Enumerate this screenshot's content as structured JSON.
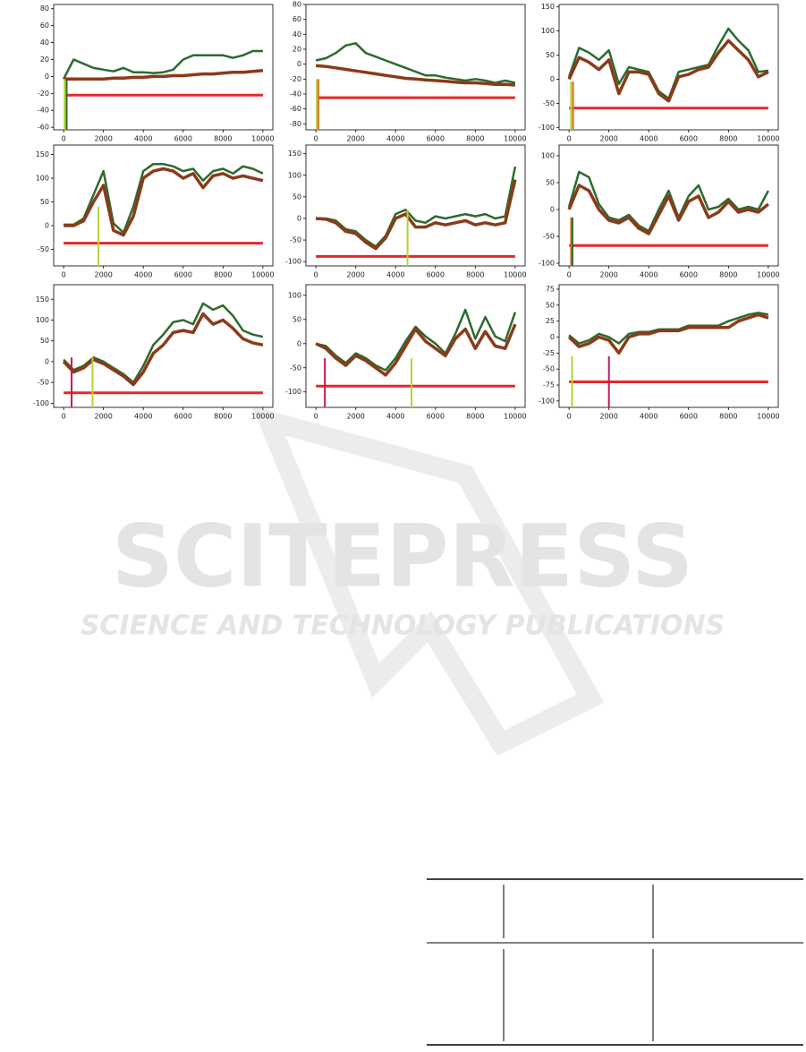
{
  "watermark": {
    "title": "SCITEPRESS",
    "subtitle": "SCIENCE AND TECHNOLOGY PUBLICATIONS"
  },
  "chart_data": [
    {
      "type": "line",
      "x": [
        0,
        500,
        1000,
        1500,
        2000,
        2500,
        3000,
        3500,
        4000,
        4500,
        5000,
        5500,
        6000,
        6500,
        7000,
        7500,
        8000,
        8500,
        9000,
        9500,
        10000
      ],
      "xlim": [
        -500,
        10500
      ],
      "xticks": [
        0,
        2000,
        4000,
        6000,
        8000,
        10000
      ],
      "ylim": [
        -63,
        85
      ],
      "yticks": [
        -60,
        -40,
        -20,
        0,
        20,
        40,
        60,
        80
      ],
      "series": [
        {
          "color": "#2d6a2e",
          "values": [
            -3,
            20,
            15,
            10,
            8,
            6,
            10,
            5,
            5,
            4,
            5,
            8,
            20,
            25,
            25,
            25,
            25,
            22,
            25,
            30,
            30
          ]
        },
        {
          "color": "#8b3a1a",
          "values": [
            -3,
            -3,
            -3,
            -3,
            -3,
            -2,
            -2,
            -1,
            -1,
            0,
            0,
            1,
            1,
            2,
            3,
            3,
            4,
            5,
            5,
            6,
            7
          ]
        }
      ],
      "hline": {
        "y": -22,
        "x0": 100,
        "x1": 10000,
        "color": "#e8262a"
      },
      "vlines": [
        {
          "x": 50,
          "top": -3,
          "color": "#b5d334"
        },
        {
          "x": 150,
          "top": -3,
          "color": "#2d6a2e"
        }
      ]
    },
    {
      "type": "line",
      "x": [
        0,
        500,
        1000,
        1500,
        2000,
        2500,
        3000,
        3500,
        4000,
        4500,
        5000,
        5500,
        6000,
        6500,
        7000,
        7500,
        8000,
        8500,
        9000,
        9500,
        10000
      ],
      "xlim": [
        -500,
        10500
      ],
      "xticks": [
        0,
        2000,
        4000,
        6000,
        8000,
        10000
      ],
      "ylim": [
        -88,
        80
      ],
      "yticks": [
        -80,
        -60,
        -40,
        -20,
        0,
        20,
        40,
        60,
        80
      ],
      "series": [
        {
          "color": "#2d6a2e",
          "values": [
            5,
            8,
            15,
            25,
            28,
            15,
            10,
            5,
            0,
            -5,
            -10,
            -15,
            -15,
            -18,
            -20,
            -22,
            -20,
            -22,
            -25,
            -22,
            -25
          ]
        },
        {
          "color": "#8b3a1a",
          "values": [
            -2,
            -3,
            -5,
            -7,
            -9,
            -11,
            -13,
            -15,
            -17,
            -19,
            -20,
            -21,
            -22,
            -23,
            -24,
            -25,
            -25,
            -26,
            -27,
            -27,
            -28
          ]
        }
      ],
      "hline": {
        "y": -45,
        "x0": 50,
        "x1": 10000,
        "color": "#e8262a"
      },
      "vlines": [
        {
          "x": 50,
          "top": -20,
          "color": "#b5d334"
        },
        {
          "x": 120,
          "top": -20,
          "color": "#e07020"
        }
      ]
    },
    {
      "type": "line",
      "x": [
        0,
        500,
        1000,
        1500,
        2000,
        2500,
        3000,
        3500,
        4000,
        4500,
        5000,
        5500,
        6000,
        6500,
        7000,
        7500,
        8000,
        8500,
        9000,
        9500,
        10000
      ],
      "xlim": [
        -500,
        10500
      ],
      "xticks": [
        0,
        2000,
        4000,
        6000,
        8000,
        10000
      ],
      "ylim": [
        -105,
        155
      ],
      "yticks": [
        -100,
        -50,
        0,
        50,
        100,
        150
      ],
      "series": [
        {
          "color": "#2d6a2e",
          "values": [
            5,
            65,
            55,
            40,
            60,
            -10,
            25,
            20,
            15,
            -25,
            -40,
            15,
            20,
            25,
            30,
            70,
            105,
            80,
            60,
            15,
            18
          ]
        },
        {
          "color": "#8b3a1a",
          "values": [
            0,
            45,
            35,
            20,
            40,
            -30,
            15,
            15,
            10,
            -30,
            -45,
            5,
            10,
            20,
            25,
            55,
            80,
            60,
            40,
            5,
            15
          ]
        }
      ],
      "hline": {
        "y": -60,
        "x0": 0,
        "x1": 10000,
        "color": "#e8262a"
      },
      "vlines": [
        {
          "x": 100,
          "top": -5,
          "color": "#b5d334"
        },
        {
          "x": 200,
          "top": -5,
          "color": "#e07020"
        }
      ]
    },
    {
      "type": "line",
      "x": [
        0,
        500,
        1000,
        1500,
        2000,
        2500,
        3000,
        3500,
        4000,
        4500,
        5000,
        5500,
        6000,
        6500,
        7000,
        7500,
        8000,
        8500,
        9000,
        9500,
        10000
      ],
      "xlim": [
        -500,
        10500
      ],
      "xticks": [
        0,
        2000,
        4000,
        6000,
        8000,
        10000
      ],
      "ylim": [
        -85,
        170
      ],
      "yticks": [
        -50,
        0,
        50,
        100,
        150
      ],
      "series": [
        {
          "color": "#2d6a2e",
          "values": [
            2,
            2,
            15,
            65,
            115,
            5,
            -15,
            40,
            115,
            130,
            130,
            125,
            115,
            120,
            95,
            115,
            120,
            110,
            125,
            120,
            110
          ]
        },
        {
          "color": "#8b3a1a",
          "values": [
            0,
            0,
            10,
            50,
            85,
            -10,
            -20,
            20,
            100,
            115,
            120,
            115,
            100,
            110,
            80,
            105,
            110,
            100,
            105,
            100,
            95
          ]
        }
      ],
      "hline": {
        "y": -37,
        "x0": 0,
        "x1": 10000,
        "color": "#e8262a"
      },
      "vlines": [
        {
          "x": 1750,
          "top": 40,
          "color": "#b5d334"
        }
      ]
    },
    {
      "type": "line",
      "x": [
        0,
        500,
        1000,
        1500,
        2000,
        2500,
        3000,
        3500,
        4000,
        4500,
        5000,
        5500,
        6000,
        6500,
        7000,
        7500,
        8000,
        8500,
        9000,
        9500,
        10000
      ],
      "xlim": [
        -500,
        10500
      ],
      "xticks": [
        0,
        2000,
        4000,
        6000,
        8000,
        10000
      ],
      "ylim": [
        -110,
        170
      ],
      "yticks": [
        -100,
        -50,
        0,
        50,
        100,
        150
      ],
      "series": [
        {
          "color": "#2d6a2e",
          "values": [
            0,
            0,
            -5,
            -25,
            -30,
            -50,
            -65,
            -40,
            10,
            20,
            -5,
            -10,
            5,
            0,
            5,
            10,
            5,
            10,
            0,
            5,
            120
          ]
        },
        {
          "color": "#8b3a1a",
          "values": [
            0,
            -2,
            -10,
            -30,
            -35,
            -55,
            -70,
            -45,
            0,
            10,
            -20,
            -20,
            -10,
            -15,
            -10,
            -5,
            -15,
            -10,
            -15,
            -10,
            90
          ]
        }
      ],
      "hline": {
        "y": -88,
        "x0": 0,
        "x1": 10000,
        "color": "#e8262a"
      },
      "vlines": [
        {
          "x": 4600,
          "top": 20,
          "color": "#b5d334"
        }
      ]
    },
    {
      "type": "line",
      "x": [
        0,
        500,
        1000,
        1500,
        2000,
        2500,
        3000,
        3500,
        4000,
        4500,
        5000,
        5500,
        6000,
        6500,
        7000,
        7500,
        8000,
        8500,
        9000,
        9500,
        10000
      ],
      "xlim": [
        -500,
        10500
      ],
      "xticks": [
        0,
        2000,
        4000,
        6000,
        8000,
        10000
      ],
      "ylim": [
        -105,
        120
      ],
      "yticks": [
        -100,
        -50,
        0,
        50,
        100
      ],
      "series": [
        {
          "color": "#2d6a2e",
          "values": [
            5,
            70,
            60,
            10,
            -15,
            -20,
            -10,
            -30,
            -40,
            0,
            35,
            -15,
            25,
            45,
            0,
            5,
            20,
            0,
            5,
            0,
            35
          ]
        },
        {
          "color": "#8b3a1a",
          "values": [
            0,
            45,
            35,
            0,
            -20,
            -25,
            -15,
            -35,
            -45,
            -10,
            25,
            -20,
            15,
            25,
            -15,
            -5,
            15,
            -5,
            0,
            -5,
            10
          ]
        }
      ],
      "hline": {
        "y": -67,
        "x0": 0,
        "x1": 10000,
        "color": "#e8262a"
      },
      "vlines": [
        {
          "x": 100,
          "top": -15,
          "color": "#e07020"
        },
        {
          "x": 170,
          "top": -15,
          "color": "#2d6a2e"
        }
      ]
    },
    {
      "type": "line",
      "x": [
        0,
        500,
        1000,
        1500,
        2000,
        2500,
        3000,
        3500,
        4000,
        4500,
        5000,
        5500,
        6000,
        6500,
        7000,
        7500,
        8000,
        8500,
        9000,
        9500,
        10000
      ],
      "xlim": [
        -500,
        10500
      ],
      "xticks": [
        0,
        2000,
        4000,
        6000,
        8000,
        10000
      ],
      "ylim": [
        -110,
        185
      ],
      "yticks": [
        -100,
        -50,
        0,
        50,
        100,
        150
      ],
      "series": [
        {
          "color": "#2d6a2e",
          "values": [
            5,
            -20,
            -10,
            10,
            0,
            -15,
            -30,
            -50,
            -10,
            40,
            65,
            95,
            100,
            90,
            140,
            125,
            135,
            110,
            75,
            65,
            60
          ]
        },
        {
          "color": "#8b3a1a",
          "values": [
            0,
            -25,
            -15,
            5,
            -5,
            -20,
            -35,
            -55,
            -25,
            20,
            40,
            70,
            75,
            70,
            115,
            90,
            100,
            80,
            55,
            45,
            40
          ]
        }
      ],
      "hline": {
        "y": -75,
        "x0": 0,
        "x1": 10000,
        "color": "#e8262a"
      },
      "vlines": [
        {
          "x": 400,
          "top": 10,
          "color": "#c2185b"
        },
        {
          "x": 1450,
          "top": 10,
          "color": "#b5d334"
        }
      ]
    },
    {
      "type": "line",
      "x": [
        0,
        500,
        1000,
        1500,
        2000,
        2500,
        3000,
        3500,
        4000,
        4500,
        5000,
        5500,
        6000,
        6500,
        7000,
        7500,
        8000,
        8500,
        9000,
        9500,
        10000
      ],
      "xlim": [
        -500,
        10500
      ],
      "xticks": [
        0,
        2000,
        4000,
        6000,
        8000,
        10000
      ],
      "ylim": [
        -132,
        122
      ],
      "yticks": [
        -100,
        -50,
        0,
        50,
        100
      ],
      "series": [
        {
          "color": "#2d6a2e",
          "values": [
            0,
            -5,
            -25,
            -40,
            -20,
            -30,
            -45,
            -55,
            -30,
            5,
            35,
            15,
            0,
            -20,
            20,
            70,
            10,
            55,
            15,
            5,
            65
          ]
        },
        {
          "color": "#8b3a1a",
          "values": [
            0,
            -10,
            -30,
            -45,
            -25,
            -35,
            -50,
            -65,
            -40,
            -5,
            30,
            5,
            -10,
            -25,
            10,
            30,
            -10,
            25,
            -5,
            -10,
            40
          ]
        }
      ],
      "hline": {
        "y": -88,
        "x0": 0,
        "x1": 10000,
        "color": "#e8262a"
      },
      "vlines": [
        {
          "x": 450,
          "top": -30,
          "color": "#c2185b"
        },
        {
          "x": 4800,
          "top": -30,
          "color": "#b5d334"
        }
      ]
    },
    {
      "type": "line",
      "x": [
        0,
        500,
        1000,
        1500,
        2000,
        2500,
        3000,
        3500,
        4000,
        4500,
        5000,
        5500,
        6000,
        6500,
        7000,
        7500,
        8000,
        8500,
        9000,
        9500,
        10000
      ],
      "xlim": [
        -500,
        10500
      ],
      "xticks": [
        0,
        2000,
        4000,
        6000,
        8000,
        10000
      ],
      "ylim": [
        -110,
        82
      ],
      "yticks": [
        -100,
        -75,
        -50,
        -25,
        0,
        25,
        50,
        75
      ],
      "series": [
        {
          "color": "#2d6a2e",
          "values": [
            3,
            -10,
            -5,
            5,
            0,
            -10,
            5,
            8,
            8,
            12,
            12,
            12,
            18,
            18,
            18,
            18,
            25,
            30,
            35,
            38,
            35
          ]
        },
        {
          "color": "#8b3a1a",
          "values": [
            0,
            -15,
            -10,
            0,
            -5,
            -25,
            0,
            5,
            5,
            10,
            10,
            10,
            15,
            15,
            15,
            15,
            15,
            25,
            30,
            35,
            30
          ]
        }
      ],
      "hline": {
        "y": -70,
        "x0": 0,
        "x1": 10000,
        "color": "#e8262a"
      },
      "vlines": [
        {
          "x": 150,
          "top": -30,
          "color": "#b5d334"
        },
        {
          "x": 2000,
          "top": -30,
          "color": "#c2185b"
        }
      ]
    }
  ]
}
